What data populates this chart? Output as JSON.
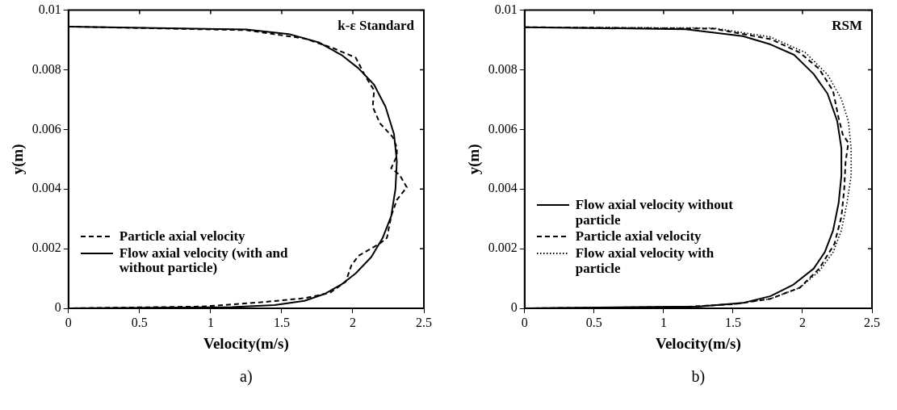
{
  "chart_data": [
    {
      "type": "line",
      "title": "k-ε Standard",
      "xlabel": "Velocity(m/s)",
      "ylabel": "y(m)",
      "annotations": [
        "a)"
      ],
      "xlim": [
        0,
        2.5
      ],
      "xticks": [
        0,
        0.5,
        1,
        1.5,
        2,
        2.5
      ],
      "ylim": [
        0,
        0.01
      ],
      "yticks": [
        0,
        0.002,
        0.004,
        0.006,
        0.008,
        0.01
      ],
      "grid": false,
      "legend": "bottom left",
      "marker": "none",
      "series": [
        {
          "name": "Particle axial velocity",
          "color": "#000000",
          "line_style": "dashed",
          "x": [
            0,
            1.25,
            1.66,
            1.86,
            2.02,
            2.05,
            2.09,
            2.15,
            2.14,
            2.19,
            2.28,
            2.31,
            2.31,
            2.27,
            2.33,
            2.38,
            2.31,
            2.27,
            2.24,
            2.19,
            2.04,
            1.99,
            1.95,
            1.84,
            1.66,
            1.35,
            0.94,
            0
          ],
          "values": [
            0.00945,
            0.00933,
            0.00905,
            0.00873,
            0.00841,
            0.00814,
            0.00777,
            0.00731,
            0.00676,
            0.00621,
            0.00575,
            0.00539,
            0.00511,
            0.0047,
            0.00447,
            0.00406,
            0.00364,
            0.00309,
            0.00236,
            0.00217,
            0.00176,
            0.00144,
            0.00089,
            0.00052,
            0.00034,
            0.0002,
            6e-05,
            0
          ]
        },
        {
          "name": "Flow axial velocity (with and without particle)",
          "color": "#000000",
          "line_style": "solid",
          "x": [
            0,
            1.25,
            1.55,
            1.76,
            1.92,
            2.04,
            2.15,
            2.23,
            2.29,
            2.31,
            2.3,
            2.27,
            2.21,
            2.13,
            2.02,
            1.92,
            1.8,
            1.66,
            1.45,
            1.15,
            0
          ],
          "values": [
            0.00945,
            0.00935,
            0.0092,
            0.00892,
            0.0085,
            0.00805,
            0.0075,
            0.00676,
            0.00584,
            0.00493,
            0.004,
            0.00309,
            0.00236,
            0.00172,
            0.00117,
            0.0008,
            0.00048,
            0.00025,
            0.00011,
            4e-05,
            0
          ]
        }
      ]
    },
    {
      "type": "line",
      "title": "RSM",
      "xlabel": "Velocity(m/s)",
      "ylabel": "y(m)",
      "annotations": [
        "b)"
      ],
      "xlim": [
        0,
        2.5
      ],
      "xticks": [
        0,
        0.5,
        1,
        1.5,
        2,
        2.5
      ],
      "ylim": [
        0,
        0.01
      ],
      "yticks": [
        0,
        0.002,
        0.004,
        0.006,
        0.008,
        0.01
      ],
      "grid": false,
      "legend": "bottom left",
      "marker": "none",
      "series": [
        {
          "name": "Flow axial velocity without particle",
          "color": "#000000",
          "line_style": "solid",
          "x": [
            0,
            1.16,
            1.57,
            1.77,
            1.94,
            2.08,
            2.18,
            2.25,
            2.28,
            2.28,
            2.26,
            2.22,
            2.16,
            2.08,
            1.93,
            1.77,
            1.57,
            1.26,
            0
          ],
          "values": [
            0.00943,
            0.00936,
            0.00913,
            0.00885,
            0.0085,
            0.00786,
            0.0072,
            0.00628,
            0.00537,
            0.00445,
            0.00353,
            0.00261,
            0.00188,
            0.00133,
            0.00078,
            0.00041,
            0.00018,
            6e-05,
            0
          ]
        },
        {
          "name": "Particle axial velocity",
          "color": "#000000",
          "line_style": "dashed",
          "x": [
            0,
            1.36,
            1.77,
            1.98,
            2.12,
            2.22,
            2.26,
            2.29,
            2.33,
            2.31,
            2.3,
            2.28,
            2.23,
            2.12,
            1.98,
            1.77,
            1.51,
            1.16,
            0
          ],
          "values": [
            0.00943,
            0.00938,
            0.00903,
            0.00858,
            0.00803,
            0.00729,
            0.00638,
            0.00583,
            0.00555,
            0.00491,
            0.00399,
            0.00307,
            0.00216,
            0.00133,
            0.00069,
            0.00032,
            0.00014,
            5e-05,
            0
          ]
        },
        {
          "name": "Flow axial velocity with particle",
          "color": "#000000",
          "line_style": "dotted",
          "x": [
            0,
            1.36,
            1.77,
            2.02,
            2.18,
            2.28,
            2.33,
            2.35,
            2.35,
            2.32,
            2.28,
            2.22,
            2.12,
            1.98,
            1.77,
            1.51,
            1.16,
            0
          ],
          "values": [
            0.00943,
            0.0094,
            0.0091,
            0.00858,
            0.00784,
            0.00702,
            0.00628,
            0.00537,
            0.00445,
            0.00353,
            0.00261,
            0.00188,
            0.00124,
            0.00069,
            0.00032,
            0.00014,
            5e-05,
            0
          ]
        }
      ]
    }
  ]
}
